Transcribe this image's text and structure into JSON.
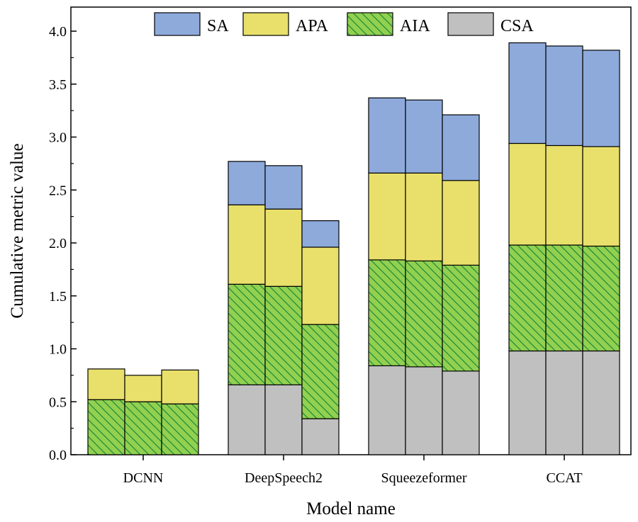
{
  "chart_data": {
    "type": "bar",
    "stacked": true,
    "title": "",
    "xlabel": "Model name",
    "ylabel": "Cumulative metric value",
    "ylim": [
      0,
      4.1
    ],
    "yticks": [
      "0.0",
      "0.5",
      "1.0",
      "1.5",
      "2.0",
      "2.5",
      "3.0",
      "3.5",
      "4.0"
    ],
    "ytick_values": [
      0,
      0.5,
      1.0,
      1.5,
      2.0,
      2.5,
      3.0,
      3.5,
      4.0
    ],
    "legend_position": "top",
    "categories": [
      "DCNN",
      "DeepSpeech2",
      "Squeezeformer",
      "CCAT"
    ],
    "bars_per_category": 3,
    "series": [
      {
        "name": "CSA",
        "color": "#c0c0c0",
        "pattern": "none",
        "values": [
          [
            0.0,
            0.0,
            0.0
          ],
          [
            0.66,
            0.66,
            0.34
          ],
          [
            0.84,
            0.83,
            0.79
          ],
          [
            0.98,
            0.98,
            0.98
          ]
        ]
      },
      {
        "name": "AIA",
        "color": "#92d050",
        "pattern": "hatch",
        "values": [
          [
            0.52,
            0.5,
            0.48
          ],
          [
            0.95,
            0.93,
            0.89
          ],
          [
            1.0,
            1.0,
            1.0
          ],
          [
            1.0,
            1.0,
            0.99
          ]
        ]
      },
      {
        "name": "APA",
        "color": "#e8e06a",
        "pattern": "none",
        "values": [
          [
            0.29,
            0.25,
            0.32
          ],
          [
            0.75,
            0.73,
            0.73
          ],
          [
            0.82,
            0.83,
            0.8
          ],
          [
            0.96,
            0.94,
            0.94
          ]
        ]
      },
      {
        "name": "SA",
        "color": "#8eaadb",
        "pattern": "none",
        "values": [
          [
            0.0,
            0.0,
            0.0
          ],
          [
            0.41,
            0.41,
            0.25
          ],
          [
            0.71,
            0.69,
            0.62
          ],
          [
            0.95,
            0.94,
            0.91
          ]
        ]
      }
    ],
    "legend_order": [
      "SA",
      "APA",
      "AIA",
      "CSA"
    ]
  }
}
